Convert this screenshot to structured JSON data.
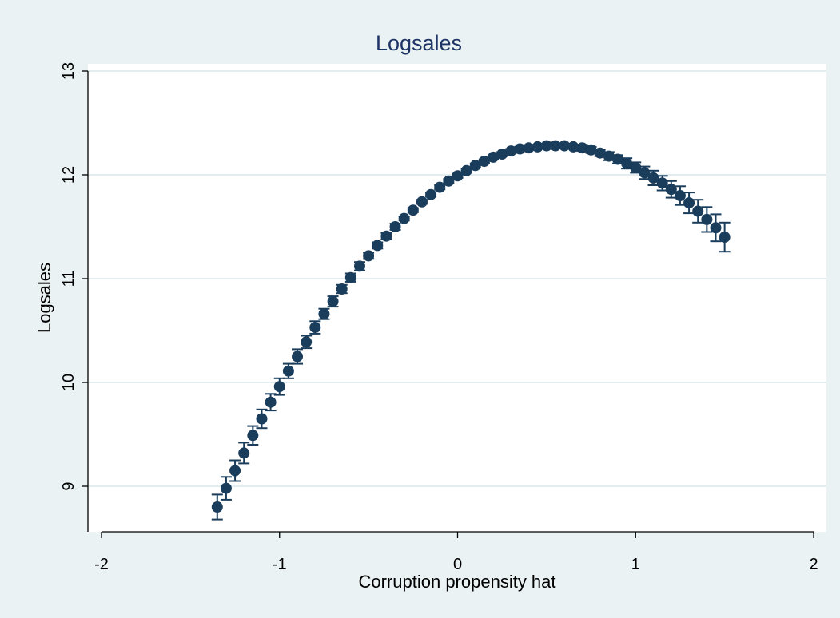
{
  "chart_data": {
    "type": "scatter",
    "title": "Logsales",
    "xlabel": "Corruption propensity hat",
    "ylabel": "Logsales",
    "xlim": [
      -2,
      2
    ],
    "ylim": [
      8.6,
      13.1
    ],
    "xticks": [
      -2,
      -1,
      0,
      1,
      2
    ],
    "yticks": [
      9,
      10,
      11,
      12,
      13
    ],
    "grid": true,
    "legend": "none",
    "error_bars": true,
    "colors": {
      "background": "#eaf2f3",
      "plot_background": "#ffffff",
      "marker": "#1b3d5c",
      "title": "#1f3466",
      "grid": "#e3ecef",
      "axis": "#000000"
    },
    "series": [
      {
        "points": [
          {
            "x": -1.35,
            "y": 8.8,
            "ci": 0.12
          },
          {
            "x": -1.3,
            "y": 8.98,
            "ci": 0.11
          },
          {
            "x": -1.25,
            "y": 9.15,
            "ci": 0.1
          },
          {
            "x": -1.2,
            "y": 9.32,
            "ci": 0.1
          },
          {
            "x": -1.15,
            "y": 9.49,
            "ci": 0.09
          },
          {
            "x": -1.1,
            "y": 9.65,
            "ci": 0.09
          },
          {
            "x": -1.05,
            "y": 9.81,
            "ci": 0.08
          },
          {
            "x": -1.0,
            "y": 9.96,
            "ci": 0.08
          },
          {
            "x": -0.95,
            "y": 10.11,
            "ci": 0.07
          },
          {
            "x": -0.9,
            "y": 10.25,
            "ci": 0.07
          },
          {
            "x": -0.85,
            "y": 10.39,
            "ci": 0.06
          },
          {
            "x": -0.8,
            "y": 10.53,
            "ci": 0.06
          },
          {
            "x": -0.75,
            "y": 10.66,
            "ci": 0.05
          },
          {
            "x": -0.7,
            "y": 10.78,
            "ci": 0.05
          },
          {
            "x": -0.65,
            "y": 10.9,
            "ci": 0.04
          },
          {
            "x": -0.6,
            "y": 11.01,
            "ci": 0.04
          },
          {
            "x": -0.55,
            "y": 11.12,
            "ci": 0.04
          },
          {
            "x": -0.5,
            "y": 11.22,
            "ci": 0.03
          },
          {
            "x": -0.45,
            "y": 11.32,
            "ci": 0.03
          },
          {
            "x": -0.4,
            "y": 11.41,
            "ci": 0.03
          },
          {
            "x": -0.35,
            "y": 11.5,
            "ci": 0.03
          },
          {
            "x": -0.3,
            "y": 11.58,
            "ci": 0.02
          },
          {
            "x": -0.25,
            "y": 11.66,
            "ci": 0.02
          },
          {
            "x": -0.2,
            "y": 11.74,
            "ci": 0.02
          },
          {
            "x": -0.15,
            "y": 11.81,
            "ci": 0.02
          },
          {
            "x": -0.1,
            "y": 11.88,
            "ci": 0.02
          },
          {
            "x": -0.05,
            "y": 11.94,
            "ci": 0.02
          },
          {
            "x": 0.0,
            "y": 11.99,
            "ci": 0.02
          },
          {
            "x": 0.05,
            "y": 12.04,
            "ci": 0.02
          },
          {
            "x": 0.1,
            "y": 12.09,
            "ci": 0.02
          },
          {
            "x": 0.15,
            "y": 12.13,
            "ci": 0.02
          },
          {
            "x": 0.2,
            "y": 12.17,
            "ci": 0.02
          },
          {
            "x": 0.25,
            "y": 12.2,
            "ci": 0.02
          },
          {
            "x": 0.3,
            "y": 12.23,
            "ci": 0.02
          },
          {
            "x": 0.35,
            "y": 12.25,
            "ci": 0.02
          },
          {
            "x": 0.4,
            "y": 12.26,
            "ci": 0.02
          },
          {
            "x": 0.45,
            "y": 12.27,
            "ci": 0.02
          },
          {
            "x": 0.5,
            "y": 12.28,
            "ci": 0.02
          },
          {
            "x": 0.55,
            "y": 12.28,
            "ci": 0.02
          },
          {
            "x": 0.6,
            "y": 12.28,
            "ci": 0.02
          },
          {
            "x": 0.65,
            "y": 12.27,
            "ci": 0.02
          },
          {
            "x": 0.7,
            "y": 12.26,
            "ci": 0.03
          },
          {
            "x": 0.75,
            "y": 12.24,
            "ci": 0.03
          },
          {
            "x": 0.8,
            "y": 12.21,
            "ci": 0.03
          },
          {
            "x": 0.85,
            "y": 12.18,
            "ci": 0.04
          },
          {
            "x": 0.9,
            "y": 12.15,
            "ci": 0.04
          },
          {
            "x": 0.95,
            "y": 12.11,
            "ci": 0.05
          },
          {
            "x": 1.0,
            "y": 12.07,
            "ci": 0.05
          },
          {
            "x": 1.05,
            "y": 12.02,
            "ci": 0.06
          },
          {
            "x": 1.1,
            "y": 11.97,
            "ci": 0.07
          },
          {
            "x": 1.15,
            "y": 11.92,
            "ci": 0.07
          },
          {
            "x": 1.2,
            "y": 11.86,
            "ci": 0.08
          },
          {
            "x": 1.25,
            "y": 11.8,
            "ci": 0.09
          },
          {
            "x": 1.3,
            "y": 11.73,
            "ci": 0.1
          },
          {
            "x": 1.35,
            "y": 11.65,
            "ci": 0.11
          },
          {
            "x": 1.4,
            "y": 11.57,
            "ci": 0.12
          },
          {
            "x": 1.45,
            "y": 11.49,
            "ci": 0.13
          },
          {
            "x": 1.5,
            "y": 11.4,
            "ci": 0.14
          }
        ]
      }
    ]
  }
}
